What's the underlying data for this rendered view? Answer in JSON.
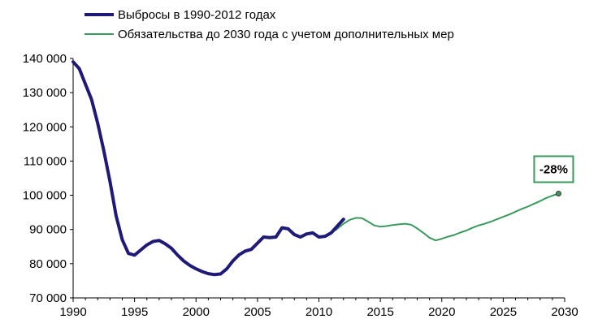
{
  "chart_data": {
    "type": "line",
    "title": "",
    "xlabel": "",
    "ylabel": "",
    "xlim": [
      1990,
      2030
    ],
    "ylim": [
      70000,
      140000
    ],
    "x_ticks": [
      1990,
      1995,
      2000,
      2005,
      2010,
      2015,
      2020,
      2025,
      2030
    ],
    "x_tick_labels": [
      "1990",
      "1995",
      "2000",
      "2005",
      "2010",
      "2015",
      "2020",
      "2025",
      "2030"
    ],
    "y_ticks": [
      70000,
      80000,
      90000,
      100000,
      110000,
      120000,
      130000,
      140000
    ],
    "y_tick_labels": [
      "70 000",
      "80 000",
      "90 000",
      "100 000",
      "110 000",
      "120 000",
      "130 000",
      "140 000"
    ],
    "grid": false,
    "legend_position": "top-left",
    "series": [
      {
        "name": "Выбросы в 1990-2012 годах",
        "color": "#1f1a78",
        "points": [
          [
            1990.0,
            139000
          ],
          [
            1990.5,
            137000
          ],
          [
            1991.0,
            132500
          ],
          [
            1991.5,
            128000
          ],
          [
            1992.0,
            121000
          ],
          [
            1992.5,
            113000
          ],
          [
            1993.0,
            104000
          ],
          [
            1993.5,
            94000
          ],
          [
            1994.0,
            87000
          ],
          [
            1994.5,
            83000
          ],
          [
            1995.0,
            82500
          ],
          [
            1995.5,
            84000
          ],
          [
            1996.0,
            85500
          ],
          [
            1996.5,
            86500
          ],
          [
            1997.0,
            86800
          ],
          [
            1997.5,
            85800
          ],
          [
            1998.0,
            84500
          ],
          [
            1998.5,
            82500
          ],
          [
            1999.0,
            80800
          ],
          [
            1999.5,
            79500
          ],
          [
            2000.0,
            78500
          ],
          [
            2000.5,
            77700
          ],
          [
            2001.0,
            77100
          ],
          [
            2001.5,
            76800
          ],
          [
            2002.0,
            77000
          ],
          [
            2002.5,
            78500
          ],
          [
            2003.0,
            80800
          ],
          [
            2003.5,
            82600
          ],
          [
            2004.0,
            83700
          ],
          [
            2004.5,
            84200
          ],
          [
            2005.0,
            86000
          ],
          [
            2005.5,
            87800
          ],
          [
            2006.0,
            87600
          ],
          [
            2006.5,
            87800
          ],
          [
            2007.0,
            90500
          ],
          [
            2007.5,
            90200
          ],
          [
            2008.0,
            88500
          ],
          [
            2008.5,
            87800
          ],
          [
            2009.0,
            88700
          ],
          [
            2009.5,
            89000
          ],
          [
            2010.0,
            87800
          ],
          [
            2010.5,
            88000
          ],
          [
            2011.0,
            89000
          ],
          [
            2011.5,
            91000
          ],
          [
            2012.0,
            93000
          ]
        ]
      },
      {
        "name": "Обязательства до 2030 года с учетом дополнительных мер",
        "color": "#3a9a5c",
        "points": [
          [
            2011.0,
            89000
          ],
          [
            2011.5,
            90200
          ],
          [
            2012.0,
            91700
          ],
          [
            2012.5,
            92800
          ],
          [
            2013.0,
            93400
          ],
          [
            2013.5,
            93300
          ],
          [
            2014.0,
            92300
          ],
          [
            2014.5,
            91200
          ],
          [
            2015.0,
            90800
          ],
          [
            2015.5,
            91000
          ],
          [
            2016.0,
            91300
          ],
          [
            2016.5,
            91500
          ],
          [
            2017.0,
            91700
          ],
          [
            2017.5,
            91400
          ],
          [
            2018.0,
            90300
          ],
          [
            2018.5,
            89000
          ],
          [
            2019.0,
            87600
          ],
          [
            2019.5,
            86800
          ],
          [
            2020.0,
            87300
          ],
          [
            2020.5,
            87900
          ],
          [
            2021.0,
            88400
          ],
          [
            2021.5,
            89100
          ],
          [
            2022.0,
            89700
          ],
          [
            2022.5,
            90500
          ],
          [
            2023.0,
            91200
          ],
          [
            2023.5,
            91700
          ],
          [
            2024.0,
            92300
          ],
          [
            2024.5,
            93000
          ],
          [
            2025.0,
            93700
          ],
          [
            2025.5,
            94400
          ],
          [
            2026.0,
            95200
          ],
          [
            2026.5,
            96000
          ],
          [
            2027.0,
            96700
          ],
          [
            2027.5,
            97500
          ],
          [
            2028.0,
            98300
          ],
          [
            2028.5,
            99200
          ],
          [
            2029.0,
            99900
          ],
          [
            2029.5,
            100500
          ]
        ]
      }
    ],
    "annotation": {
      "text": "-28%",
      "x": 2029.5,
      "y": 100500,
      "border_color": "#3a9a5c"
    }
  }
}
